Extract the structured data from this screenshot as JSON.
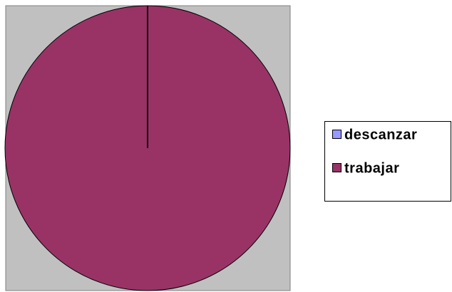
{
  "chart_data": {
    "type": "pie",
    "categories": [
      "descanzar",
      "trabajar"
    ],
    "values": [
      0,
      100
    ],
    "colors": [
      "#9999ff",
      "#993366"
    ],
    "legend": "right"
  }
}
